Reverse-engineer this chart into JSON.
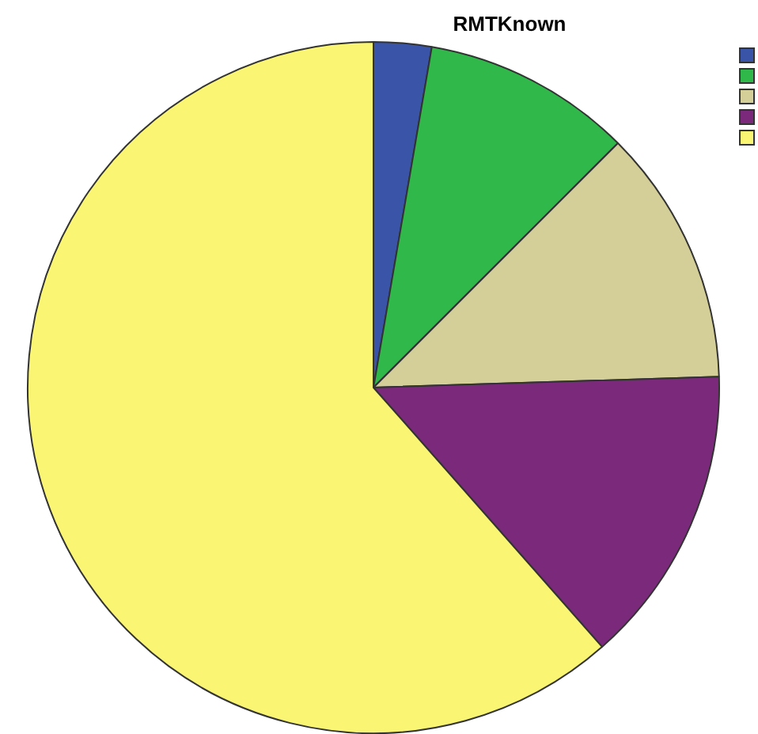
{
  "chart_data": {
    "type": "pie",
    "title": "RMTKnown",
    "categories": [
      null,
      null,
      null,
      null,
      null
    ],
    "values": [
      2.7,
      9.8,
      12,
      14,
      61.5
    ],
    "colors": [
      "#3a55a8",
      "#31b84a",
      "#d4cf98",
      "#7b2a7b",
      "#faf674"
    ]
  }
}
